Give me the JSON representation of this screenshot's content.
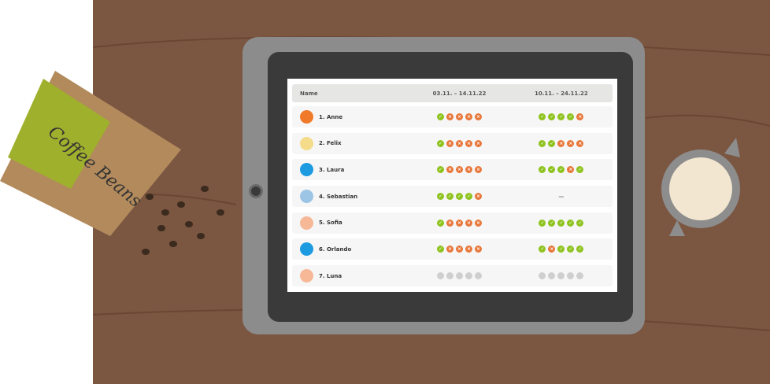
{
  "table": {
    "headers": [
      "Name",
      "03.11. – 14.11.22",
      "10.11. – 24.11.22"
    ],
    "rows": [
      {
        "name": "1. Anne",
        "avatar": "fox",
        "color": "#f07a2a",
        "p1": [
          "ok",
          "no",
          "no",
          "no",
          "no"
        ],
        "p2": [
          "ok",
          "ok",
          "ok",
          "ok",
          "no"
        ]
      },
      {
        "name": "2. Felix",
        "avatar": "rabbit",
        "color": "#f5dc8a",
        "p1": [
          "ok",
          "no",
          "no",
          "no",
          "no"
        ],
        "p2": [
          "ok",
          "ok",
          "no",
          "no",
          "no"
        ]
      },
      {
        "name": "3. Laura",
        "avatar": "bird",
        "color": "#1d9be0",
        "p1": [
          "ok",
          "no",
          "no",
          "no",
          "no"
        ],
        "p2": [
          "ok",
          "ok",
          "ok",
          "no",
          "ok"
        ]
      },
      {
        "name": "4. Sebastian",
        "avatar": "person",
        "color": "#9cc4e4",
        "p1": [
          "ok",
          "ok",
          "ok",
          "ok",
          "no"
        ],
        "p2": "—"
      },
      {
        "name": "5. Sofia",
        "avatar": "pig",
        "color": "#f6b897",
        "p1": [
          "ok",
          "no",
          "no",
          "no",
          "no"
        ],
        "p2": [
          "ok",
          "ok",
          "ok",
          "ok",
          "ok"
        ]
      },
      {
        "name": "6. Orlando",
        "avatar": "bird",
        "color": "#1d9be0",
        "p1": [
          "ok",
          "no",
          "no",
          "no",
          "no"
        ],
        "p2": [
          "ok",
          "no",
          "ok",
          "ok",
          "ok"
        ]
      },
      {
        "name": "7. Luna",
        "avatar": "pig",
        "color": "#f6b897",
        "p1": [
          "na",
          "na",
          "na",
          "na",
          "na"
        ],
        "p2": [
          "na",
          "na",
          "na",
          "na",
          "na"
        ]
      }
    ]
  },
  "icons": {
    "ok": "check-icon",
    "no": "x-icon",
    "na": "pending-icon"
  },
  "colors": {
    "ok": "#8fc31f",
    "no": "#e8773a",
    "na": "#cfcfcf"
  },
  "decor": {
    "bag_text": "Coffee Beans"
  }
}
